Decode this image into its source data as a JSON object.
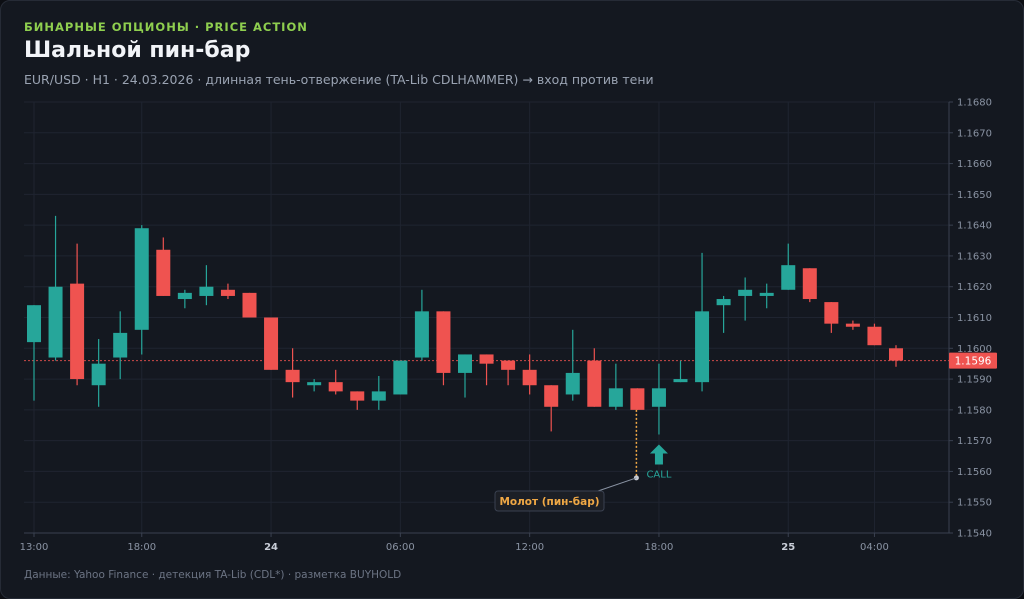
{
  "header": {
    "kicker": "БИНАРНЫЕ ОПЦИОНЫ · PRICE ACTION",
    "title": "Шальной пин-бар",
    "subtitle": "EUR/USD · H1 · 24.03.2026 · длинная тень-отвержение (TA-Lib CDLHAMMER) → вход против тени"
  },
  "footer": "Данные: Yahoo Finance · детекция TA-Lib (CDL*) · разметка BUYHOLD",
  "colors": {
    "up": "#26a69a",
    "down": "#ef5350",
    "accent": "#f0a845",
    "grid": "#1f2430",
    "axis": "#3a4150",
    "text": "#8a93a3"
  },
  "chart_data": {
    "type": "candlestick",
    "symbol": "EUR/USD",
    "timeframe": "H1",
    "ylim": [
      1.154,
      1.168
    ],
    "y_ticks": [
      "1.1540",
      "1.1550",
      "1.1560",
      "1.1570",
      "1.1580",
      "1.1590",
      "1.1600",
      "1.1610",
      "1.1620",
      "1.1630",
      "1.1640",
      "1.1650",
      "1.1660",
      "1.1670",
      "1.1680"
    ],
    "x_ticks": [
      {
        "index": 0,
        "label": "13:00",
        "bold": false
      },
      {
        "index": 5,
        "label": "18:00",
        "bold": false
      },
      {
        "index": 11,
        "label": "24",
        "bold": true
      },
      {
        "index": 17,
        "label": "06:00",
        "bold": false
      },
      {
        "index": 23,
        "label": "12:00",
        "bold": false
      },
      {
        "index": 29,
        "label": "18:00",
        "bold": false
      },
      {
        "index": 35,
        "label": "25",
        "bold": true
      },
      {
        "index": 39,
        "label": "04:00",
        "bold": false
      }
    ],
    "candles": [
      {
        "o": 1.1602,
        "h": 1.1614,
        "l": 1.1583,
        "c": 1.1614
      },
      {
        "o": 1.1597,
        "h": 1.1643,
        "l": 1.1596,
        "c": 1.162
      },
      {
        "o": 1.1621,
        "h": 1.1634,
        "l": 1.1588,
        "c": 1.159
      },
      {
        "o": 1.1588,
        "h": 1.1603,
        "l": 1.1581,
        "c": 1.1595
      },
      {
        "o": 1.1597,
        "h": 1.1612,
        "l": 1.159,
        "c": 1.1605
      },
      {
        "o": 1.1606,
        "h": 1.164,
        "l": 1.1598,
        "c": 1.1639
      },
      {
        "o": 1.1632,
        "h": 1.1636,
        "l": 1.1617,
        "c": 1.1617
      },
      {
        "o": 1.1616,
        "h": 1.1619,
        "l": 1.1613,
        "c": 1.1618
      },
      {
        "o": 1.1617,
        "h": 1.1627,
        "l": 1.1614,
        "c": 1.162
      },
      {
        "o": 1.1619,
        "h": 1.1621,
        "l": 1.1616,
        "c": 1.1617
      },
      {
        "o": 1.1618,
        "h": 1.1618,
        "l": 1.161,
        "c": 1.161
      },
      {
        "o": 1.161,
        "h": 1.161,
        "l": 1.1593,
        "c": 1.1593
      },
      {
        "o": 1.1593,
        "h": 1.16,
        "l": 1.1584,
        "c": 1.1589
      },
      {
        "o": 1.1588,
        "h": 1.159,
        "l": 1.1586,
        "c": 1.1589
      },
      {
        "o": 1.1589,
        "h": 1.1593,
        "l": 1.1585,
        "c": 1.1586
      },
      {
        "o": 1.1586,
        "h": 1.1586,
        "l": 1.158,
        "c": 1.1583
      },
      {
        "o": 1.1583,
        "h": 1.1591,
        "l": 1.158,
        "c": 1.1586
      },
      {
        "o": 1.1585,
        "h": 1.1596,
        "l": 1.1585,
        "c": 1.1596
      },
      {
        "o": 1.1597,
        "h": 1.1619,
        "l": 1.1596,
        "c": 1.1612
      },
      {
        "o": 1.1612,
        "h": 1.1612,
        "l": 1.1588,
        "c": 1.1592
      },
      {
        "o": 1.1592,
        "h": 1.1598,
        "l": 1.1584,
        "c": 1.1598
      },
      {
        "o": 1.1598,
        "h": 1.1598,
        "l": 1.1588,
        "c": 1.1595
      },
      {
        "o": 1.1596,
        "h": 1.1596,
        "l": 1.1588,
        "c": 1.1593
      },
      {
        "o": 1.1593,
        "h": 1.1598,
        "l": 1.1585,
        "c": 1.1588
      },
      {
        "o": 1.1588,
        "h": 1.1588,
        "l": 1.1573,
        "c": 1.1581
      },
      {
        "o": 1.1585,
        "h": 1.1606,
        "l": 1.1583,
        "c": 1.1592
      },
      {
        "o": 1.1596,
        "h": 1.16,
        "l": 1.1581,
        "c": 1.1581
      },
      {
        "o": 1.1581,
        "h": 1.1595,
        "l": 1.158,
        "c": 1.1587
      },
      {
        "o": 1.1587,
        "h": 1.1587,
        "l": 1.158,
        "c": 1.158
      },
      {
        "o": 1.1581,
        "h": 1.1595,
        "l": 1.1572,
        "c": 1.1587
      },
      {
        "o": 1.1589,
        "h": 1.1596,
        "l": 1.1589,
        "c": 1.159
      },
      {
        "o": 1.1589,
        "h": 1.1631,
        "l": 1.1586,
        "c": 1.1612
      },
      {
        "o": 1.1614,
        "h": 1.1617,
        "l": 1.1605,
        "c": 1.1616
      },
      {
        "o": 1.1617,
        "h": 1.1623,
        "l": 1.1609,
        "c": 1.1619
      },
      {
        "o": 1.1617,
        "h": 1.1621,
        "l": 1.1613,
        "c": 1.1618
      },
      {
        "o": 1.1619,
        "h": 1.1634,
        "l": 1.1619,
        "c": 1.1627
      },
      {
        "o": 1.1626,
        "h": 1.1626,
        "l": 1.1615,
        "c": 1.1616
      },
      {
        "o": 1.1615,
        "h": 1.1615,
        "l": 1.1605,
        "c": 1.1608
      },
      {
        "o": 1.1608,
        "h": 1.1609,
        "l": 1.1606,
        "c": 1.1607
      },
      {
        "o": 1.1607,
        "h": 1.1608,
        "l": 1.1601,
        "c": 1.1601
      },
      {
        "o": 1.16,
        "h": 1.1601,
        "l": 1.1594,
        "c": 1.1596
      }
    ],
    "last_price": {
      "value": 1.1596,
      "label": "1.1596"
    },
    "annotations": [
      {
        "type": "label",
        "candle_index": 28,
        "text": "Молот (пин-бар)"
      },
      {
        "type": "signal",
        "candle_index": 29,
        "direction": "up",
        "text": "CALL"
      }
    ]
  }
}
